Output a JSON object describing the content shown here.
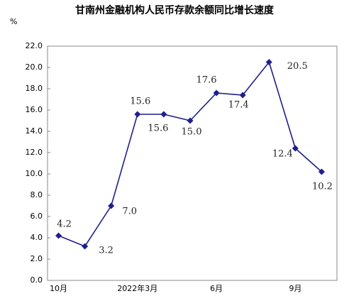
{
  "chart_data": {
    "type": "line",
    "title": "甘南州金融机构人民币存款余额同比增长速度",
    "y_unit": "%",
    "categories": [
      "10月",
      null,
      null,
      "2022年3月",
      null,
      null,
      "6月",
      null,
      null,
      "9月",
      null
    ],
    "series": [
      {
        "name": "存款余额同比增长速度",
        "color": "#1f1f8f",
        "values": [
          4.2,
          3.2,
          7.0,
          15.6,
          15.6,
          15.0,
          17.6,
          17.4,
          20.5,
          12.4,
          10.2
        ],
        "value_labels": [
          "4.2",
          "3.2",
          "7.0",
          "15.6",
          "15.6",
          "15.0",
          "17.6",
          "17.4",
          "20.5",
          "12.4",
          "10.2"
        ]
      }
    ],
    "ylim": [
      0,
      22
    ],
    "yticks": [
      {
        "value": 0,
        "label": "0.0"
      },
      {
        "value": 2,
        "label": "2.0"
      },
      {
        "value": 4,
        "label": "4.0"
      },
      {
        "value": 6,
        "label": "6.0"
      },
      {
        "value": 8,
        "label": "8.0"
      },
      {
        "value": 10,
        "label": "10.0"
      },
      {
        "value": 12,
        "label": "12.0"
      },
      {
        "value": 14,
        "label": "14.0"
      },
      {
        "value": 16,
        "label": "16.0"
      },
      {
        "value": 18,
        "label": "18.0"
      },
      {
        "value": 20,
        "label": "20.0"
      },
      {
        "value": 22,
        "label": "22.0"
      }
    ],
    "grid": false
  }
}
